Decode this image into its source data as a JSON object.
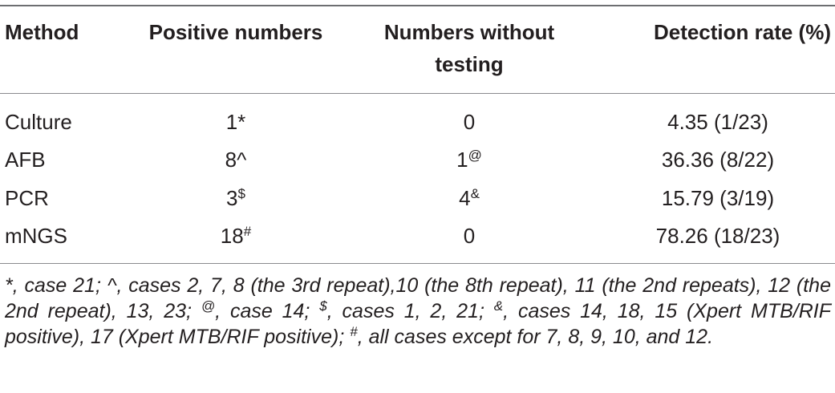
{
  "table": {
    "headers": {
      "method": "Method",
      "positive": "Positive numbers",
      "without_line1": "Numbers without",
      "without_line2": "testing",
      "rate": "Detection rate (%)"
    },
    "rows": [
      {
        "method": "Culture",
        "positive": "1*",
        "positive_sup": "",
        "without": "0",
        "without_sup": "",
        "rate": "4.35 (1/23)"
      },
      {
        "method": "AFB",
        "positive": "8^",
        "positive_sup": "",
        "without": "1",
        "without_sup": "@",
        "rate": "36.36 (8/22)"
      },
      {
        "method": "PCR",
        "positive": "3",
        "positive_sup": "$",
        "without": "4",
        "without_sup": "&",
        "rate": "15.79 (3/19)"
      },
      {
        "method": "mNGS",
        "positive": "18",
        "positive_sup": "#",
        "without": "0",
        "without_sup": "",
        "rate": "78.26 (18/23)"
      }
    ]
  },
  "footnote": {
    "p1": "*, case 21; ^, cases 2, 7, 8 (the 3rd repeat),10 (the 8th repeat), 11 (the 2nd repeats), 12 (the 2nd repeat), 13, 23; ",
    "s_at": "@",
    "p2": ", case 14; ",
    "s_dollar": "$",
    "p3": ", cases 1, 2, 21; ",
    "s_amp": "&",
    "p4": ", cases 14, 18, 15 (Xpert MTB/RIF positive), 17 (Xpert MTB/RIF positive); ",
    "s_hash": "#",
    "p5": ", all cases except for 7, 8, 9, 10, and 12."
  }
}
